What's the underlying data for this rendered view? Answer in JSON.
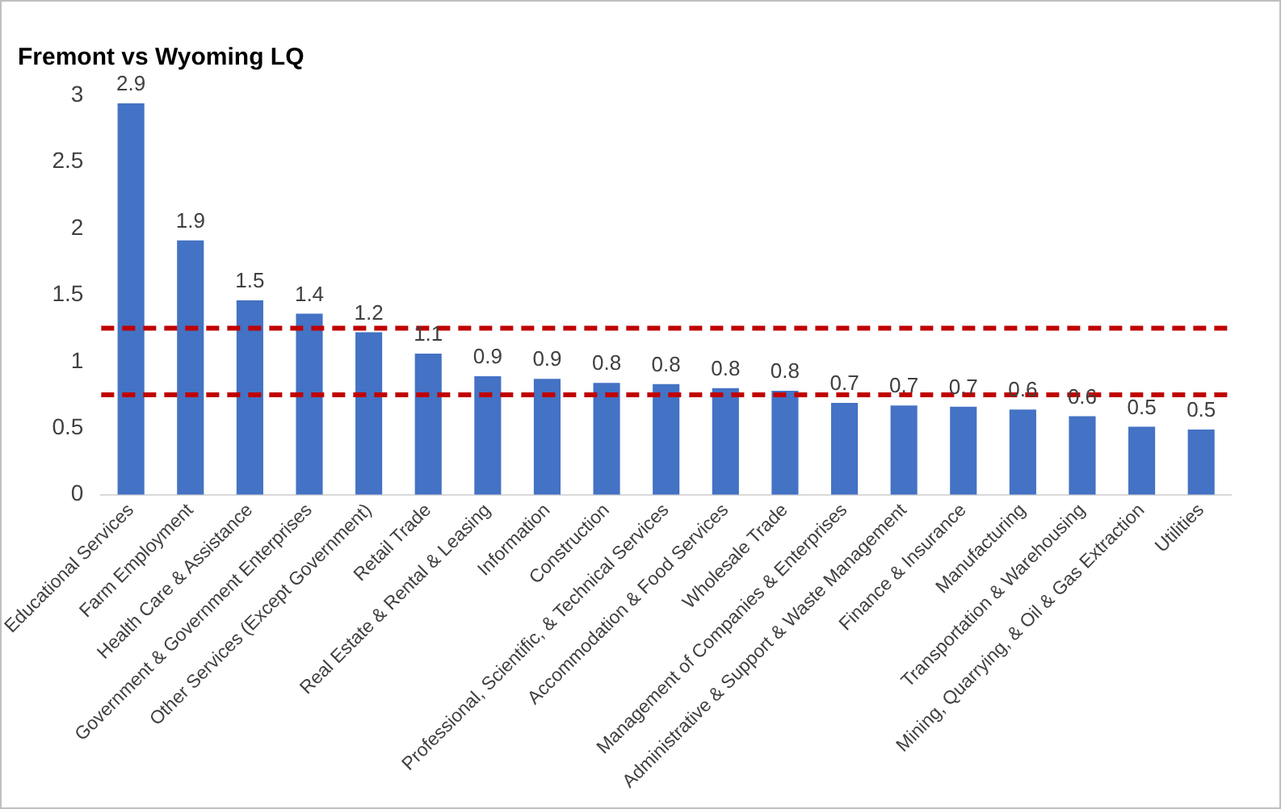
{
  "chart_data": {
    "type": "bar",
    "title": "Fremont vs Wyoming LQ",
    "categories": [
      "Educational Services",
      "Farm Employment",
      "Health Care & Assistance",
      "Government & Government Enterprises",
      "Other Services (Except Government)",
      "Retail Trade",
      "Real Estate & Rental & Leasing",
      "Information",
      "Construction",
      "Professional, Scientific, & Technical Services",
      "Accommodation & Food Services",
      "Wholesale Trade",
      "Management of Companies & Enterprises",
      "Administrative & Support & Waste Management",
      "Finance & Insurance",
      "Manufacturing",
      "Transportation & Warehousing",
      "Mining, Quarrying, & Oil & Gas Extraction",
      "Utilities"
    ],
    "values": [
      2.94,
      1.91,
      1.46,
      1.36,
      1.22,
      1.06,
      0.89,
      0.87,
      0.84,
      0.83,
      0.8,
      0.78,
      0.69,
      0.67,
      0.66,
      0.64,
      0.59,
      0.51,
      0.49
    ],
    "value_labels": [
      "2.9",
      "1.9",
      "1.5",
      "1.4",
      "1.2",
      "1.1",
      "0.9",
      "0.9",
      "0.8",
      "0.8",
      "0.8",
      "0.8",
      "0.7",
      "0.7",
      "0.7",
      "0.6",
      "0.6",
      "0.5",
      "0.5"
    ],
    "color": "#4472c4",
    "ylim": [
      0,
      3
    ],
    "yticks": [
      0,
      0.5,
      1,
      1.5,
      2,
      2.5,
      3
    ],
    "grid": false,
    "legend": false,
    "ref_lines": [
      {
        "axis": "y",
        "value": 1.25,
        "color": "#c00000",
        "line_style": "dashed"
      },
      {
        "axis": "y",
        "value": 0.75,
        "color": "#c00000",
        "line_style": "dashed"
      }
    ]
  }
}
